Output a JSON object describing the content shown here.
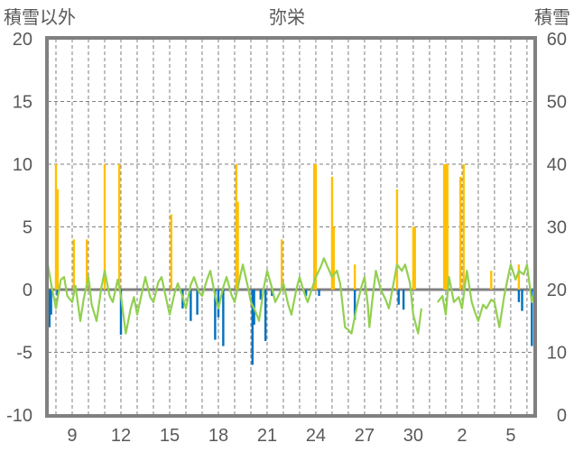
{
  "chart_data": {
    "type": "line",
    "title": "弥栄",
    "ylabel_left": "積雪以外",
    "ylabel_right": "積雪",
    "ylim_left": [
      -10,
      20
    ],
    "ylim_right": [
      0,
      60
    ],
    "yticks_left": [
      "-10",
      "-5",
      "0",
      "5",
      "10",
      "15",
      "20"
    ],
    "yticks_right": [
      "0",
      "10",
      "20",
      "30",
      "40",
      "50",
      "60"
    ],
    "xlim_day": [
      7.5,
      37.45
    ],
    "xticks": [
      {
        "day": 9,
        "label": "9"
      },
      {
        "day": 12,
        "label": "12"
      },
      {
        "day": 15,
        "label": "15"
      },
      {
        "day": 18,
        "label": "18"
      },
      {
        "day": 21,
        "label": "21"
      },
      {
        "day": 24,
        "label": "24"
      },
      {
        "day": 27,
        "label": "27"
      },
      {
        "day": 30,
        "label": "30"
      },
      {
        "day": 33,
        "label": "2"
      },
      {
        "day": 36,
        "label": "5"
      }
    ],
    "grid": true,
    "colors": {
      "temperature": "#FF0000",
      "green": "#92D050",
      "yellow": "#FFC000",
      "blue": "#0070C0",
      "snow": "#7030A0",
      "frame": "#808080"
    },
    "series": [
      {
        "name": "red",
        "axis": "left",
        "kind": "line",
        "points": [
          [
            7.5,
            2.6
          ],
          [
            7.9,
            1.7
          ],
          [
            8.0,
            7.5
          ],
          [
            8.3,
            5.1
          ],
          [
            8.6,
            3.7
          ],
          [
            8.8,
            1.3
          ],
          [
            8.9,
            6.8
          ],
          [
            9.1,
            7.8
          ],
          [
            9.4,
            3.7
          ],
          [
            9.6,
            -1.2
          ],
          [
            9.8,
            -0.9
          ],
          [
            10.0,
            8.6
          ],
          [
            10.2,
            8.2
          ],
          [
            10.5,
            3.9
          ],
          [
            10.8,
            0.3
          ],
          [
            11.1,
            9.4
          ],
          [
            11.3,
            4.9
          ],
          [
            11.6,
            0.8
          ],
          [
            11.8,
            -0.1
          ],
          [
            11.9,
            9.2
          ],
          [
            12.2,
            4.4
          ],
          [
            12.4,
            3.5
          ],
          [
            12.7,
            4.9
          ],
          [
            12.9,
            3.9
          ],
          [
            13.2,
            0.8
          ],
          [
            13.4,
            0.1
          ],
          [
            13.6,
            2.4
          ],
          [
            14.1,
            3.3
          ],
          [
            14.4,
            2.0
          ],
          [
            14.9,
            2.6
          ],
          [
            15.2,
            4.2
          ],
          [
            15.5,
            1.5
          ],
          [
            15.8,
            3.7
          ],
          [
            16.2,
            3.7
          ],
          [
            16.6,
            1.5
          ],
          [
            17.1,
            4.4
          ],
          [
            17.5,
            0.6
          ],
          [
            18.0,
            2.6
          ],
          [
            18.1,
            2.2
          ],
          [
            18.4,
            -2.3
          ],
          [
            18.8,
            -5.0
          ],
          [
            19.0,
            4.6
          ],
          [
            19.3,
            -0.9
          ],
          [
            19.7,
            0.8
          ],
          [
            19.9,
            4.9
          ],
          [
            20.2,
            2.7
          ],
          [
            20.7,
            1.3
          ],
          [
            21.1,
            2.7
          ],
          [
            21.5,
            -0.4
          ],
          [
            21.9,
            5.1
          ],
          [
            22.3,
            0.8
          ],
          [
            22.6,
            4.2
          ],
          [
            22.8,
            1.3
          ],
          [
            23.1,
            5.7
          ],
          [
            23.3,
            -1.2
          ],
          [
            23.8,
            -4.2
          ],
          [
            24.0,
            9.9
          ],
          [
            24.3,
            7.5
          ],
          [
            24.4,
            6.5
          ],
          [
            24.8,
            4.9
          ],
          [
            25.0,
            8.0
          ],
          [
            25.4,
            4.6
          ],
          [
            25.6,
            5.6
          ],
          [
            25.8,
            2.7
          ],
          [
            26.1,
            3.2
          ],
          [
            26.6,
            0.3
          ],
          [
            26.9,
            -0.1
          ],
          [
            27.3,
            -0.4
          ],
          [
            27.7,
            1.7
          ],
          [
            28.1,
            3.4
          ],
          [
            28.4,
            -0.1
          ],
          [
            28.8,
            7.3
          ],
          [
            29.0,
            8.0
          ],
          [
            29.3,
            7.8
          ],
          [
            29.4,
            6.0
          ],
          [
            29.7,
            5.3
          ],
          [
            29.9,
            6.3
          ],
          [
            30.2,
            4.2
          ],
          [
            30.4,
            0.6
          ],
          null,
          [
            31.5,
            -0.9
          ],
          [
            31.8,
            -2.1
          ],
          [
            31.9,
            7.1
          ],
          [
            32.3,
            0.1
          ],
          [
            32.5,
            -2.6
          ],
          [
            32.8,
            -1.4
          ],
          [
            33.0,
            8.2
          ],
          [
            33.3,
            4.6
          ],
          [
            33.4,
            -1.6
          ],
          [
            33.7,
            -0.1
          ],
          [
            33.9,
            3.5
          ],
          [
            34.2,
            1.3
          ],
          [
            34.4,
            1.0
          ],
          [
            34.8,
            3.5
          ],
          [
            35.0,
            4.2
          ],
          [
            35.3,
            -0.1
          ],
          [
            35.6,
            -3.5
          ],
          [
            35.8,
            6.0
          ],
          [
            36.1,
            7.1
          ],
          [
            36.3,
            3.7
          ],
          [
            36.6,
            4.9
          ],
          [
            36.9,
            6.5
          ],
          [
            37.1,
            7.8
          ],
          [
            37.2,
            4.6
          ],
          [
            37.4,
            2.4
          ]
        ]
      },
      {
        "name": "green",
        "axis": "left",
        "kind": "line",
        "points": [
          [
            7.5,
            2
          ],
          [
            7.7,
            0.5
          ],
          [
            8.0,
            -1.5
          ],
          [
            8.3,
            0.8
          ],
          [
            8.5,
            1
          ],
          [
            8.7,
            -0.5
          ],
          [
            9.0,
            -1
          ],
          [
            9.2,
            0.3
          ],
          [
            9.5,
            -2.5
          ],
          [
            9.7,
            -0.8
          ],
          [
            10.0,
            1
          ],
          [
            10.2,
            -1.2
          ],
          [
            10.5,
            -2.5
          ],
          [
            10.8,
            0.2
          ],
          [
            11.0,
            1.5
          ],
          [
            11.3,
            -0.5
          ],
          [
            11.5,
            -1
          ],
          [
            11.8,
            0.8
          ],
          [
            12.0,
            -0.5
          ],
          [
            12.3,
            -3.5
          ],
          [
            12.6,
            -1.5
          ],
          [
            12.8,
            -0.6
          ],
          [
            13.0,
            -2
          ],
          [
            13.3,
            -0.2
          ],
          [
            13.5,
            1
          ],
          [
            13.8,
            -0.6
          ],
          [
            14.0,
            -1
          ],
          [
            14.3,
            0.6
          ],
          [
            14.5,
            1
          ],
          [
            14.8,
            -0.8
          ],
          [
            15.0,
            -2
          ],
          [
            15.3,
            -0.3
          ],
          [
            15.5,
            0.5
          ],
          [
            15.8,
            -0.6
          ],
          [
            16.0,
            -1.5
          ],
          [
            16.3,
            0.4
          ],
          [
            16.5,
            1
          ],
          [
            16.8,
            -0.2
          ],
          [
            17.0,
            -0.5
          ],
          [
            17.3,
            0.8
          ],
          [
            17.5,
            1.5
          ],
          [
            17.8,
            -0.5
          ],
          [
            18.0,
            -1.5
          ],
          [
            18.3,
            0.2
          ],
          [
            18.5,
            1
          ],
          [
            18.8,
            -0.4
          ],
          [
            19.0,
            -1
          ],
          [
            19.3,
            0.8
          ],
          [
            19.5,
            2
          ],
          [
            19.8,
            0.3
          ],
          [
            20.0,
            -1
          ],
          [
            20.3,
            -1.8
          ],
          [
            20.5,
            -2.5
          ],
          [
            20.8,
            0.2
          ],
          [
            21.0,
            1.5
          ],
          [
            21.3,
            0.1
          ],
          [
            21.5,
            -1
          ],
          [
            21.8,
            -0.2
          ],
          [
            22.0,
            0.5
          ],
          [
            22.3,
            -1.2
          ],
          [
            22.5,
            -2
          ],
          [
            22.8,
            0
          ],
          [
            23.0,
            1
          ],
          [
            23.3,
            -0.3
          ],
          [
            23.5,
            -1
          ],
          [
            23.8,
            0.2
          ],
          [
            24.0,
            1
          ],
          [
            24.3,
            1.8
          ],
          [
            24.5,
            2.5
          ],
          [
            24.8,
            1.6
          ],
          [
            25.0,
            1
          ],
          [
            25.3,
            1.5
          ],
          [
            25.5,
            0.5
          ],
          [
            25.8,
            -3
          ],
          [
            26.0,
            -3.2
          ],
          [
            26.2,
            -3.5
          ],
          [
            26.5,
            -1.5
          ],
          [
            26.8,
            0.2
          ],
          [
            27.0,
            1
          ],
          [
            27.2,
            -1.2
          ],
          [
            27.3,
            -3
          ],
          [
            27.5,
            -0.6
          ],
          [
            27.7,
            1.5
          ],
          [
            28.0,
            0
          ],
          [
            28.3,
            -0.8
          ],
          [
            28.5,
            -1.5
          ],
          [
            28.8,
            0.6
          ],
          [
            29.0,
            2
          ],
          [
            29.3,
            1.5
          ],
          [
            29.5,
            2
          ],
          [
            29.8,
            0.5
          ],
          [
            30.0,
            -2
          ],
          [
            30.3,
            -3.5
          ],
          [
            30.5,
            -1.5
          ],
          null,
          [
            31.5,
            -1
          ],
          [
            31.8,
            -0.5
          ],
          [
            32.0,
            -2
          ],
          [
            32.2,
            1
          ],
          [
            32.5,
            -1
          ],
          [
            32.8,
            -0.6
          ],
          [
            33.0,
            -1.5
          ],
          [
            33.3,
            1.5
          ],
          [
            33.6,
            -1
          ],
          [
            33.8,
            -1.8
          ],
          [
            34.0,
            -2.5
          ],
          [
            34.3,
            -1.2
          ],
          [
            34.5,
            -1.5
          ],
          [
            34.8,
            -0.8
          ],
          [
            35.0,
            -1
          ],
          [
            35.3,
            -3
          ],
          [
            35.6,
            -0.5
          ],
          [
            35.8,
            0.8
          ],
          [
            36.0,
            2
          ],
          [
            36.3,
            0.8
          ],
          [
            36.5,
            1.5
          ],
          [
            36.8,
            1.2
          ],
          [
            37.0,
            2
          ],
          [
            37.3,
            -1
          ],
          [
            37.4,
            -0.5
          ]
        ]
      },
      {
        "name": "yellow",
        "axis": "left",
        "kind": "bar",
        "points": [
          [
            8.0,
            10
          ],
          [
            8.1,
            8
          ],
          [
            9.1,
            4
          ],
          [
            9.9,
            4
          ],
          [
            11.0,
            10
          ],
          [
            11.9,
            10
          ],
          [
            15.1,
            6
          ],
          [
            19.1,
            10
          ],
          [
            19.2,
            7
          ],
          [
            21.9,
            4
          ],
          [
            23.9,
            10
          ],
          [
            24.0,
            10
          ],
          [
            25.0,
            9
          ],
          [
            25.1,
            5
          ],
          [
            26.4,
            2
          ],
          [
            29.0,
            8
          ],
          [
            30.0,
            5
          ],
          [
            30.1,
            5
          ],
          [
            31.9,
            10
          ],
          [
            32.0,
            10
          ],
          [
            32.1,
            10
          ],
          [
            32.9,
            9
          ],
          [
            33.1,
            10
          ],
          [
            34.8,
            1.5
          ],
          [
            36.5,
            2
          ]
        ]
      },
      {
        "name": "blue",
        "axis": "left",
        "kind": "bar",
        "points": [
          [
            7.6,
            -3
          ],
          [
            7.7,
            -2
          ],
          [
            8.1,
            -0.5
          ],
          [
            12.0,
            -3.6
          ],
          [
            15.8,
            -1.5
          ],
          [
            16.3,
            -2.5
          ],
          [
            16.7,
            -2
          ],
          [
            17.8,
            -4
          ],
          [
            18.0,
            -2.2
          ],
          [
            18.3,
            -4.5
          ],
          [
            20.1,
            -6
          ],
          [
            20.2,
            -2.8
          ],
          [
            20.6,
            -0.8
          ],
          [
            20.9,
            -4.1
          ],
          [
            21.3,
            -0.5
          ],
          [
            23.4,
            -0.5
          ],
          [
            24.2,
            -0.5
          ],
          [
            26.4,
            -2.4
          ],
          [
            29.1,
            -1.2
          ],
          [
            29.4,
            -1.6
          ],
          [
            36.5,
            -1
          ],
          [
            36.7,
            -1.7
          ],
          [
            37.3,
            -4.5
          ]
        ]
      },
      {
        "name": "purple",
        "axis": "right",
        "kind": "line",
        "points": [
          [
            7.5,
            0
          ],
          [
            17.5,
            0
          ],
          [
            17.8,
            17
          ],
          [
            17.9,
            15.5
          ],
          [
            18.2,
            11.8
          ],
          [
            18.4,
            10.8
          ],
          [
            18.8,
            10.8
          ],
          [
            19.1,
            9
          ],
          [
            19.6,
            8.2
          ],
          [
            20.0,
            2.4
          ],
          [
            20.4,
            2.2
          ],
          [
            20.5,
            1
          ],
          [
            20.8,
            3.9
          ],
          [
            21.0,
            2.9
          ],
          [
            21.5,
            2.9
          ],
          [
            21.9,
            0
          ],
          [
            26.5,
            0
          ],
          [
            26.7,
            2
          ],
          [
            26.8,
            4
          ],
          [
            27.0,
            2
          ],
          [
            27.3,
            1
          ],
          [
            27.7,
            0
          ],
          [
            37.4,
            0
          ]
        ]
      }
    ]
  }
}
